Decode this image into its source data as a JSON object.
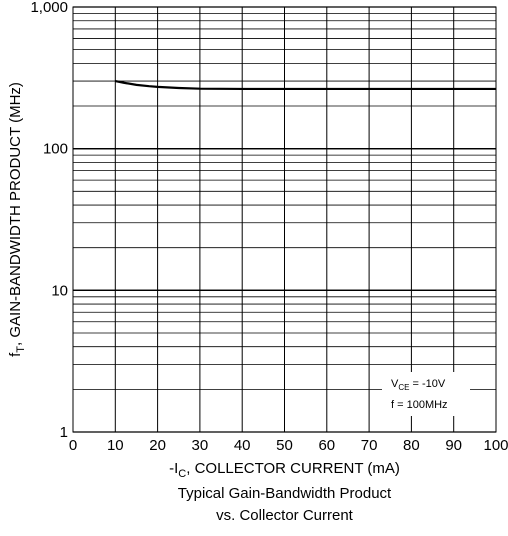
{
  "chart_data": {
    "type": "line",
    "title": "Typical Gain-Bandwidth Product",
    "subtitle": "vs. Collector Current",
    "xlabel": {
      "prefix": "-I",
      "sub": "C",
      "suffix": ", COLLECTOR CURRENT (mA)"
    },
    "ylabel": {
      "prefix": "f",
      "sub": "T",
      "suffix": ", GAIN-BANDWIDTH PRODUCT (MHz)"
    },
    "xlim": [
      0,
      100
    ],
    "ylim": [
      1,
      1000
    ],
    "yscale": "log",
    "grid": true,
    "xticks": [
      "0",
      "10",
      "20",
      "30",
      "40",
      "50",
      "60",
      "70",
      "80",
      "90",
      "100"
    ],
    "yticks": [
      {
        "value": 1,
        "label": "1"
      },
      {
        "value": 10,
        "label": "10"
      },
      {
        "value": 100,
        "label": "100"
      },
      {
        "value": 1000,
        "label": "1,000"
      }
    ],
    "annotation": {
      "line1": {
        "prefix": "V",
        "sub": "CE",
        "suffix": " = -10V"
      },
      "line2": "f = 100MHz"
    },
    "series": [
      {
        "x": [
          10,
          12,
          15,
          18,
          20,
          25,
          30,
          40,
          50,
          60,
          70,
          80,
          90,
          100
        ],
        "y": [
          300,
          292,
          282,
          276,
          273,
          268,
          265,
          264,
          264,
          264,
          264,
          264,
          264,
          264
        ]
      }
    ]
  }
}
